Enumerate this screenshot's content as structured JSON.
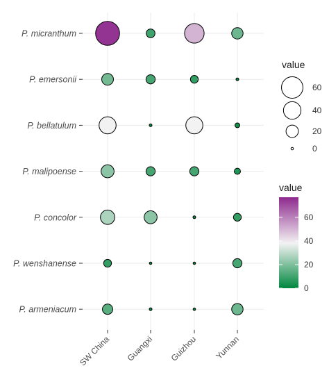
{
  "chart_data": {
    "type": "scatter",
    "title": "",
    "xlabel": "",
    "ylabel": "",
    "x_categories": [
      "SW China",
      "Guangxi",
      "Guizhou",
      "Yunnan"
    ],
    "y_categories": [
      "P. micranthum",
      "P. emersonii",
      "P. bellatulum",
      "P. malipoense",
      "P. concolor",
      "P. wenshanense",
      "P. armeniacum"
    ],
    "points": [
      {
        "species": "P. micranthum",
        "region": "SW China",
        "value": 75
      },
      {
        "species": "P. micranthum",
        "region": "Guangxi",
        "value": 10
      },
      {
        "species": "P. micranthum",
        "region": "Guizhou",
        "value": 50
      },
      {
        "species": "P. micranthum",
        "region": "Yunnan",
        "value": 17
      },
      {
        "species": "P. emersonii",
        "region": "SW China",
        "value": 18
      },
      {
        "species": "P. emersonii",
        "region": "Guangxi",
        "value": 11
      },
      {
        "species": "P. emersonii",
        "region": "Guizhou",
        "value": 8
      },
      {
        "species": "P. emersonii",
        "region": "Yunnan",
        "value": 1
      },
      {
        "species": "P. bellatulum",
        "region": "SW China",
        "value": 38
      },
      {
        "species": "P. bellatulum",
        "region": "Guangxi",
        "value": 1
      },
      {
        "species": "P. bellatulum",
        "region": "Guizhou",
        "value": 38
      },
      {
        "species": "P. bellatulum",
        "region": "Yunnan",
        "value": 3
      },
      {
        "species": "P. malipoense",
        "region": "SW China",
        "value": 22
      },
      {
        "species": "P. malipoense",
        "region": "Guangxi",
        "value": 11
      },
      {
        "species": "P. malipoense",
        "region": "Guizhou",
        "value": 11
      },
      {
        "species": "P. malipoense",
        "region": "Yunnan",
        "value": 5
      },
      {
        "species": "P. concolor",
        "region": "SW China",
        "value": 27
      },
      {
        "species": "P. concolor",
        "region": "Guangxi",
        "value": 22
      },
      {
        "species": "P. concolor",
        "region": "Guizhou",
        "value": 1
      },
      {
        "species": "P. concolor",
        "region": "Yunnan",
        "value": 8
      },
      {
        "species": "P. wenshanense",
        "region": "SW China",
        "value": 8
      },
      {
        "species": "P. wenshanense",
        "region": "Guangxi",
        "value": 0.5
      },
      {
        "species": "P. wenshanense",
        "region": "Guizhou",
        "value": 0.5
      },
      {
        "species": "P. wenshanense",
        "region": "Yunnan",
        "value": 11
      },
      {
        "species": "P. armeniacum",
        "region": "SW China",
        "value": 14
      },
      {
        "species": "P. armeniacum",
        "region": "Guangxi",
        "value": 1
      },
      {
        "species": "P. armeniacum",
        "region": "Guizhou",
        "value": 0.5
      },
      {
        "species": "P. armeniacum",
        "region": "Yunnan",
        "value": 17
      }
    ],
    "size_legend": {
      "title": "value",
      "breaks": [
        60,
        40,
        20,
        0
      ]
    },
    "color_legend": {
      "title": "value",
      "ticks": [
        60,
        40,
        20,
        0
      ],
      "range": [
        0,
        77
      ]
    },
    "color_scale": {
      "low": "#00873e",
      "mid": "#f2f2f2",
      "high": "#8e2a8e",
      "midpoint": 38
    },
    "size_range": [
      0,
      77
    ],
    "grid": true,
    "legend_position": "right"
  }
}
